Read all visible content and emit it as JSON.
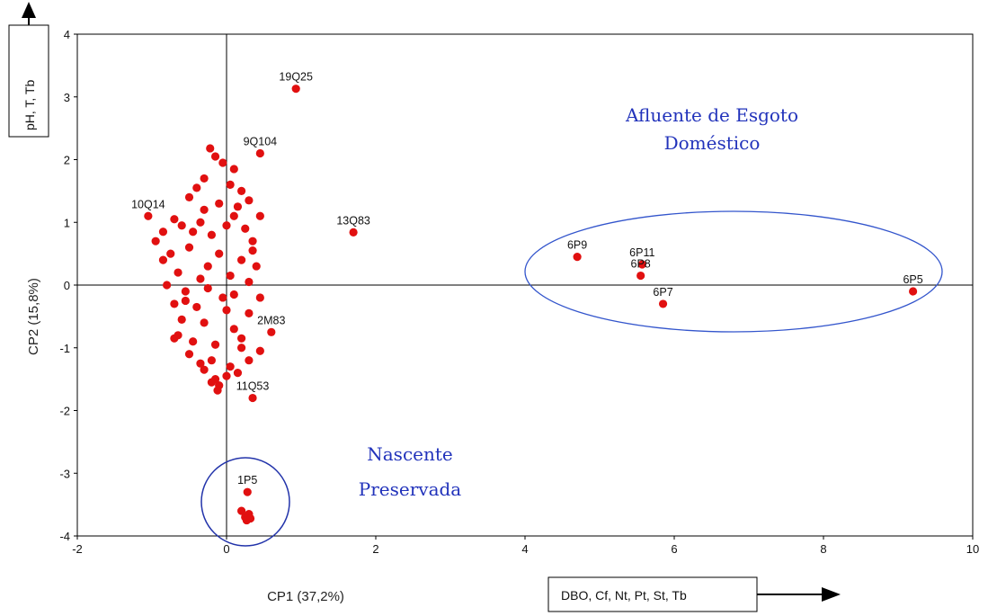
{
  "chart_data": {
    "type": "scatter",
    "xlabel": "CP1 (37,2%)",
    "ylabel": "CP2 (15,8%)",
    "xlim": [
      -2,
      10
    ],
    "ylim": [
      -4,
      4
    ],
    "x_ticks": [
      "-2",
      "0",
      "2",
      "4",
      "6",
      "8",
      "10"
    ],
    "y_ticks": [
      "4",
      "3",
      "2",
      "1",
      "0",
      "-1",
      "-2",
      "-3",
      "-4"
    ],
    "x_variable_box": "DBO, Cf, Nt, Pt, St, Tb",
    "y_variable_box": "pH, T, Tb",
    "annotations": {
      "effluent": [
        "Afluente de Esgoto",
        "Doméstico"
      ],
      "spring": [
        "Nascente",
        "Preservada"
      ]
    },
    "labeled_points": [
      {
        "label": "19Q25",
        "x": 0.93,
        "y": 3.13
      },
      {
        "label": "13Q83",
        "x": 1.7,
        "y": 0.84
      },
      {
        "label": "9Q104",
        "x": 0.45,
        "y": 2.1
      },
      {
        "label": "6P9",
        "x": 4.7,
        "y": 0.45
      },
      {
        "label": "6P11",
        "x": 5.57,
        "y": 0.33
      },
      {
        "label": "6P8",
        "x": 5.55,
        "y": 0.15
      },
      {
        "label": "6P7",
        "x": 5.85,
        "y": -0.3
      },
      {
        "label": "6P5",
        "x": 9.2,
        "y": -0.1
      },
      {
        "label": "2M83",
        "x": 0.6,
        "y": -0.75
      },
      {
        "label": "11Q53",
        "x": 0.35,
        "y": -1.8
      },
      {
        "label": "1P5",
        "x": 0.28,
        "y": -3.3
      },
      {
        "label": "10Q14",
        "x": -1.05,
        "y": 1.1
      }
    ],
    "points": [
      [
        -0.22,
        2.18
      ],
      [
        -0.15,
        2.05
      ],
      [
        -0.05,
        1.95
      ],
      [
        0.1,
        1.85
      ],
      [
        -0.3,
        1.7
      ],
      [
        0.05,
        1.6
      ],
      [
        -0.4,
        1.55
      ],
      [
        0.2,
        1.5
      ],
      [
        0.3,
        1.35
      ],
      [
        -0.5,
        1.4
      ],
      [
        0.45,
        1.1
      ],
      [
        -0.7,
        1.05
      ],
      [
        -0.85,
        0.85
      ],
      [
        -0.95,
        0.7
      ],
      [
        -0.6,
        0.95
      ],
      [
        -0.3,
        1.2
      ],
      [
        0.1,
        1.1
      ],
      [
        0.25,
        0.9
      ],
      [
        -0.2,
        0.8
      ],
      [
        0.35,
        0.7
      ],
      [
        -0.75,
        0.5
      ],
      [
        -0.85,
        0.4
      ],
      [
        -0.5,
        0.6
      ],
      [
        -0.1,
        0.5
      ],
      [
        0.2,
        0.4
      ],
      [
        0.4,
        0.3
      ],
      [
        -0.65,
        0.2
      ],
      [
        -0.35,
        0.1
      ],
      [
        0.05,
        0.15
      ],
      [
        0.3,
        0.05
      ],
      [
        -0.8,
        0.0
      ],
      [
        -0.55,
        -0.1
      ],
      [
        -0.25,
        -0.05
      ],
      [
        0.1,
        -0.15
      ],
      [
        0.45,
        -0.2
      ],
      [
        -0.7,
        -0.3
      ],
      [
        -0.4,
        -0.35
      ],
      [
        0.0,
        -0.4
      ],
      [
        0.3,
        -0.45
      ],
      [
        -0.6,
        -0.55
      ],
      [
        -0.3,
        -0.6
      ],
      [
        0.1,
        -0.7
      ],
      [
        -0.65,
        -0.8
      ],
      [
        -0.7,
        -0.85
      ],
      [
        -0.45,
        -0.9
      ],
      [
        -0.15,
        -0.95
      ],
      [
        0.2,
        -1.0
      ],
      [
        0.45,
        -1.05
      ],
      [
        -0.5,
        -1.1
      ],
      [
        -0.2,
        -1.2
      ],
      [
        0.05,
        -1.3
      ],
      [
        0.3,
        -1.2
      ],
      [
        -0.3,
        -1.35
      ],
      [
        -0.15,
        -1.5
      ],
      [
        -0.2,
        -1.55
      ],
      [
        -0.1,
        -1.6
      ],
      [
        -0.12,
        -1.68
      ],
      [
        0.0,
        -1.45
      ],
      [
        0.15,
        -1.4
      ],
      [
        -0.35,
        -1.25
      ],
      [
        -0.25,
        0.3
      ],
      [
        -0.45,
        0.85
      ],
      [
        0.0,
        0.95
      ],
      [
        -0.1,
        1.3
      ],
      [
        0.15,
        1.25
      ],
      [
        -0.55,
        -0.25
      ],
      [
        0.2,
        -0.85
      ],
      [
        0.35,
        0.55
      ],
      [
        -0.05,
        -0.2
      ],
      [
        -0.35,
        1.0
      ],
      [
        0.2,
        -3.6
      ],
      [
        0.25,
        -3.7
      ],
      [
        0.3,
        -3.65
      ],
      [
        0.27,
        -3.75
      ],
      [
        0.32,
        -3.72
      ]
    ]
  }
}
